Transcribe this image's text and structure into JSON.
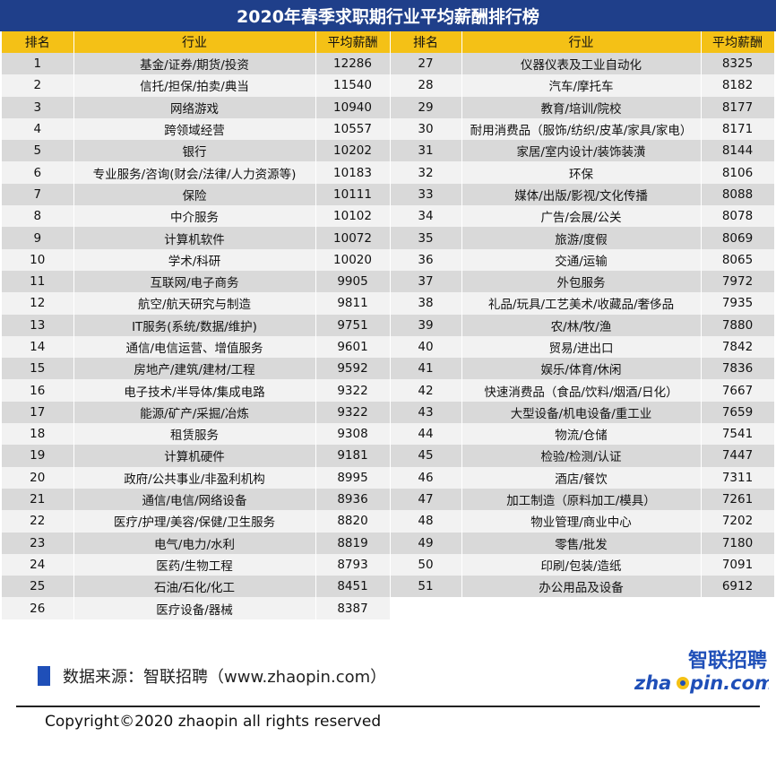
{
  "title": "2020年春季求职期行业平均薪酬排行榜",
  "headers": {
    "rank": "排名",
    "industry": "行业",
    "salary": "平均薪酬"
  },
  "chart_data": {
    "type": "table",
    "title": "2020年春季求职期行业平均薪酬排行榜",
    "columns": [
      "排名",
      "行业",
      "平均薪酬"
    ],
    "rows": [
      [
        1,
        "基金/证券/期货/投资",
        12286
      ],
      [
        2,
        "信托/担保/拍卖/典当",
        11540
      ],
      [
        3,
        "网络游戏",
        10940
      ],
      [
        4,
        "跨领域经营",
        10557
      ],
      [
        5,
        "银行",
        10202
      ],
      [
        6,
        "专业服务/咨询(财会/法律/人力资源等)",
        10183
      ],
      [
        7,
        "保险",
        10111
      ],
      [
        8,
        "中介服务",
        10102
      ],
      [
        9,
        "计算机软件",
        10072
      ],
      [
        10,
        "学术/科研",
        10020
      ],
      [
        11,
        "互联网/电子商务",
        9905
      ],
      [
        12,
        "航空/航天研究与制造",
        9811
      ],
      [
        13,
        "IT服务(系统/数据/维护)",
        9751
      ],
      [
        14,
        "通信/电信运营、增值服务",
        9601
      ],
      [
        15,
        "房地产/建筑/建材/工程",
        9592
      ],
      [
        16,
        "电子技术/半导体/集成电路",
        9322
      ],
      [
        17,
        "能源/矿产/采掘/冶炼",
        9322
      ],
      [
        18,
        "租赁服务",
        9308
      ],
      [
        19,
        "计算机硬件",
        9181
      ],
      [
        20,
        "政府/公共事业/非盈利机构",
        8995
      ],
      [
        21,
        "通信/电信/网络设备",
        8936
      ],
      [
        22,
        "医疗/护理/美容/保健/卫生服务",
        8820
      ],
      [
        23,
        "电气/电力/水利",
        8819
      ],
      [
        24,
        "医药/生物工程",
        8793
      ],
      [
        25,
        "石油/石化/化工",
        8451
      ],
      [
        26,
        "医疗设备/器械",
        8387
      ],
      [
        27,
        "仪器仪表及工业自动化",
        8325
      ],
      [
        28,
        "汽车/摩托车",
        8182
      ],
      [
        29,
        "教育/培训/院校",
        8177
      ],
      [
        30,
        "耐用消费品（服饰/纺织/皮革/家具/家电）",
        8171
      ],
      [
        31,
        "家居/室内设计/装饰装潢",
        8144
      ],
      [
        32,
        "环保",
        8106
      ],
      [
        33,
        "媒体/出版/影视/文化传播",
        8088
      ],
      [
        34,
        "广告/会展/公关",
        8078
      ],
      [
        35,
        "旅游/度假",
        8069
      ],
      [
        36,
        "交通/运输",
        8065
      ],
      [
        37,
        "外包服务",
        7972
      ],
      [
        38,
        "礼品/玩具/工艺美术/收藏品/奢侈品",
        7935
      ],
      [
        39,
        "农/林/牧/渔",
        7880
      ],
      [
        40,
        "贸易/进出口",
        7842
      ],
      [
        41,
        "娱乐/体育/休闲",
        7836
      ],
      [
        42,
        "快速消费品（食品/饮料/烟酒/日化）",
        7667
      ],
      [
        43,
        "大型设备/机电设备/重工业",
        7659
      ],
      [
        44,
        "物流/仓储",
        7541
      ],
      [
        45,
        "检验/检测/认证",
        7447
      ],
      [
        46,
        "酒店/餐饮",
        7311
      ],
      [
        47,
        "加工制造（原料加工/模具）",
        7261
      ],
      [
        48,
        "物业管理/商业中心",
        7202
      ],
      [
        49,
        "零售/批发",
        7180
      ],
      [
        50,
        "印刷/包装/造纸",
        7091
      ],
      [
        51,
        "办公用品及设备",
        6912
      ]
    ]
  },
  "footer": {
    "source": "数据来源：智联招聘（www.zhaopin.com）",
    "copyright": "Copyright©2020 zhaopin all rights reserved",
    "logo_cn": "智联招聘",
    "logo_en_left": "zha",
    "logo_en_right": "pin.com"
  },
  "colors": {
    "title_bg": "#1f3f8a",
    "header_bg": "#f4c116",
    "row_dark": "#d9d9d9",
    "row_light": "#f2f2f2",
    "logo_blue": "#1f4fb8",
    "logo_yellow": "#f4c116"
  }
}
